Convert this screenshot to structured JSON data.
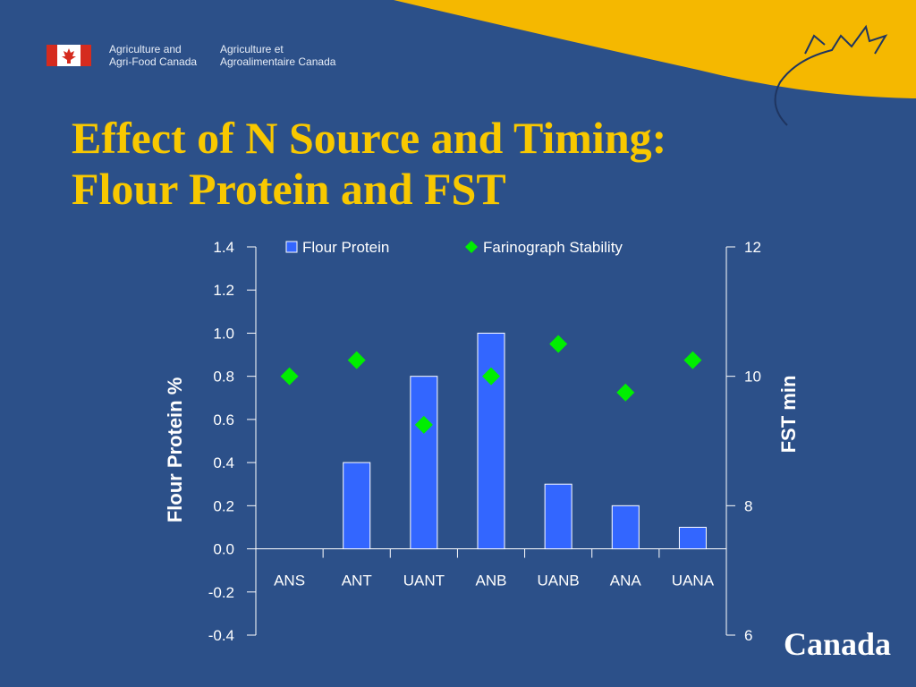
{
  "header": {
    "org_en_line1": "Agriculture and",
    "org_en_line2": "Agri-Food Canada",
    "org_fr_line1": "Agriculture et",
    "org_fr_line2": "Agroalimentaire Canada",
    "flag_icon": "canada-flag-icon"
  },
  "slide": {
    "title_line1": "Effect of N Source and Timing:",
    "title_line2": "Flour Protein and FST",
    "wordmark": "Canada",
    "colors": {
      "background": "#2c5089",
      "title": "#f8c800",
      "swoosh": "#f5b800"
    }
  },
  "chart_data": {
    "type": "bar",
    "categories": [
      "ANS",
      "ANT",
      "UANT",
      "ANB",
      "UANB",
      "ANA",
      "UANA"
    ],
    "series": [
      {
        "name": "Flour Protein",
        "type": "bar",
        "axis": "left",
        "color": "#3366ff",
        "values": [
          0.0,
          0.4,
          0.8,
          1.0,
          0.3,
          0.2,
          0.1
        ]
      },
      {
        "name": "Farinograph Stability",
        "type": "scatter",
        "marker": "diamond",
        "axis": "right",
        "color": "#00ee00",
        "values": [
          10.0,
          10.25,
          9.25,
          10.0,
          10.5,
          9.75,
          10.25
        ]
      }
    ],
    "ylabel": "Flour Protein %",
    "y2label": "FST min",
    "ylim": [
      -0.4,
      1.4
    ],
    "y2lim": [
      6,
      12
    ],
    "yticks": [
      "-0.4",
      "-0.2",
      "0.0",
      "0.2",
      "0.4",
      "0.6",
      "0.8",
      "1.0",
      "1.2",
      "1.4"
    ],
    "y2ticks": [
      "6",
      "8",
      "10",
      "12"
    ],
    "legend_position": "top",
    "grid": false
  }
}
